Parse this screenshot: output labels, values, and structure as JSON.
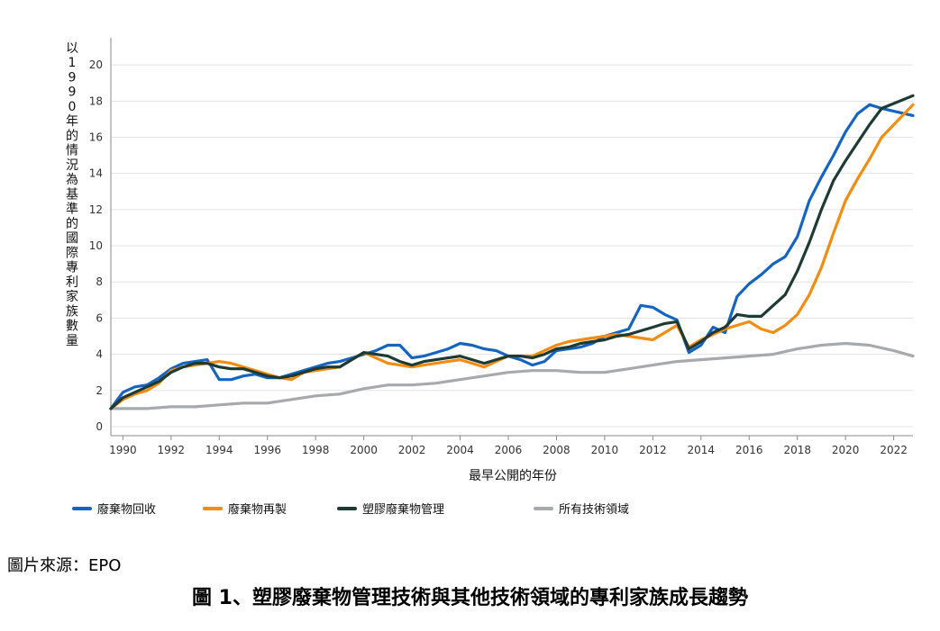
{
  "source": "圖片來源：EPO",
  "caption": "圖 1、塑膠廢棄物管理技術與其他技術領域的專利家族成長趨勢",
  "chart_data": {
    "type": "line",
    "title": "",
    "xlabel": "最早公開的年份",
    "ylabel": "以1990年的情況為基準的國際專利家族數量",
    "xlim": [
      1989.5,
      2022.8
    ],
    "ylim": [
      -0.5,
      21.5
    ],
    "xticks": [
      1990,
      1992,
      1994,
      1996,
      1998,
      2000,
      2002,
      2004,
      2006,
      2008,
      2010,
      2012,
      2014,
      2016,
      2018,
      2020,
      2022
    ],
    "yticks": [
      0,
      2,
      4,
      6,
      8,
      10,
      12,
      14,
      16,
      18,
      20
    ],
    "grid": "horizontal",
    "legend_position": "bottom",
    "series": [
      {
        "name": "廢棄物回收",
        "color": "#1565c0",
        "points": [
          [
            1989.5,
            1.0
          ],
          [
            1990,
            1.9
          ],
          [
            1990.5,
            2.2
          ],
          [
            1991,
            2.3
          ],
          [
            1991.5,
            2.7
          ],
          [
            1992,
            3.2
          ],
          [
            1992.5,
            3.5
          ],
          [
            1993,
            3.6
          ],
          [
            1993.5,
            3.7
          ],
          [
            1994,
            2.6
          ],
          [
            1994.5,
            2.6
          ],
          [
            1995,
            2.8
          ],
          [
            1995.5,
            2.9
          ],
          [
            1996,
            2.7
          ],
          [
            1996.5,
            2.7
          ],
          [
            1997,
            2.9
          ],
          [
            1997.5,
            3.1
          ],
          [
            1998,
            3.3
          ],
          [
            1998.5,
            3.5
          ],
          [
            1999,
            3.6
          ],
          [
            1999.5,
            3.8
          ],
          [
            2000,
            4.0
          ],
          [
            2000.5,
            4.2
          ],
          [
            2001,
            4.5
          ],
          [
            2001.5,
            4.5
          ],
          [
            2002,
            3.8
          ],
          [
            2002.5,
            3.9
          ],
          [
            2003,
            4.1
          ],
          [
            2003.5,
            4.3
          ],
          [
            2004,
            4.6
          ],
          [
            2004.5,
            4.5
          ],
          [
            2005,
            4.3
          ],
          [
            2005.5,
            4.2
          ],
          [
            2006,
            3.9
          ],
          [
            2006.5,
            3.7
          ],
          [
            2007,
            3.4
          ],
          [
            2007.5,
            3.6
          ],
          [
            2008,
            4.2
          ],
          [
            2008.5,
            4.3
          ],
          [
            2009,
            4.4
          ],
          [
            2009.5,
            4.6
          ],
          [
            2010,
            5.0
          ],
          [
            2010.5,
            5.2
          ],
          [
            2011,
            5.4
          ],
          [
            2011.5,
            6.7
          ],
          [
            2012,
            6.6
          ],
          [
            2012.5,
            6.2
          ],
          [
            2013,
            5.9
          ],
          [
            2013.5,
            4.1
          ],
          [
            2014,
            4.5
          ],
          [
            2014.5,
            5.5
          ],
          [
            2015,
            5.2
          ],
          [
            2015.5,
            7.2
          ],
          [
            2016,
            7.9
          ],
          [
            2016.5,
            8.4
          ],
          [
            2017,
            9.0
          ],
          [
            2017.5,
            9.4
          ],
          [
            2018,
            10.5
          ],
          [
            2018.5,
            12.5
          ],
          [
            2019,
            13.8
          ],
          [
            2019.5,
            15.0
          ],
          [
            2020,
            16.3
          ],
          [
            2020.5,
            17.3
          ],
          [
            2021,
            17.8
          ],
          [
            2021.5,
            17.6
          ],
          [
            2022.8,
            17.2
          ]
        ]
      },
      {
        "name": "廢棄物再製",
        "color": "#f28c12",
        "points": [
          [
            1989.5,
            1.0
          ],
          [
            1990,
            1.5
          ],
          [
            1990.5,
            1.8
          ],
          [
            1991,
            2.0
          ],
          [
            1991.5,
            2.4
          ],
          [
            1992,
            3.1
          ],
          [
            1992.5,
            3.3
          ],
          [
            1993,
            3.4
          ],
          [
            1993.5,
            3.5
          ],
          [
            1994,
            3.6
          ],
          [
            1994.5,
            3.5
          ],
          [
            1995,
            3.3
          ],
          [
            1995.5,
            3.1
          ],
          [
            1996,
            2.9
          ],
          [
            1996.5,
            2.7
          ],
          [
            1997,
            2.6
          ],
          [
            1997.5,
            3.0
          ],
          [
            1998,
            3.1
          ],
          [
            1998.5,
            3.2
          ],
          [
            1999,
            3.3
          ],
          [
            1999.5,
            3.7
          ],
          [
            2000,
            4.1
          ],
          [
            2000.5,
            3.8
          ],
          [
            2001,
            3.5
          ],
          [
            2001.5,
            3.4
          ],
          [
            2002,
            3.3
          ],
          [
            2002.5,
            3.4
          ],
          [
            2003,
            3.5
          ],
          [
            2003.5,
            3.6
          ],
          [
            2004,
            3.7
          ],
          [
            2004.5,
            3.5
          ],
          [
            2005,
            3.3
          ],
          [
            2005.5,
            3.6
          ],
          [
            2006,
            3.9
          ],
          [
            2006.5,
            3.9
          ],
          [
            2007,
            3.9
          ],
          [
            2007.5,
            4.2
          ],
          [
            2008,
            4.5
          ],
          [
            2008.5,
            4.7
          ],
          [
            2009,
            4.8
          ],
          [
            2009.5,
            4.9
          ],
          [
            2010,
            5.0
          ],
          [
            2010.5,
            5.1
          ],
          [
            2011,
            5.0
          ],
          [
            2011.5,
            4.9
          ],
          [
            2012,
            4.8
          ],
          [
            2012.5,
            5.2
          ],
          [
            2013,
            5.6
          ],
          [
            2013.5,
            4.4
          ],
          [
            2014,
            4.8
          ],
          [
            2014.5,
            5.1
          ],
          [
            2015,
            5.4
          ],
          [
            2015.5,
            5.6
          ],
          [
            2016,
            5.8
          ],
          [
            2016.5,
            5.4
          ],
          [
            2017,
            5.2
          ],
          [
            2017.5,
            5.6
          ],
          [
            2018,
            6.2
          ],
          [
            2018.5,
            7.3
          ],
          [
            2019,
            8.8
          ],
          [
            2019.5,
            10.7
          ],
          [
            2020,
            12.5
          ],
          [
            2020.5,
            13.7
          ],
          [
            2021,
            14.8
          ],
          [
            2021.5,
            16.0
          ],
          [
            2022.8,
            17.8
          ]
        ]
      },
      {
        "name": "塑膠廢棄物管理",
        "color": "#1d3a34",
        "points": [
          [
            1989.5,
            1.0
          ],
          [
            1990,
            1.6
          ],
          [
            1990.5,
            1.9
          ],
          [
            1991,
            2.2
          ],
          [
            1991.5,
            2.5
          ],
          [
            1992,
            3.0
          ],
          [
            1992.5,
            3.3
          ],
          [
            1993,
            3.5
          ],
          [
            1993.5,
            3.5
          ],
          [
            1994,
            3.3
          ],
          [
            1994.5,
            3.2
          ],
          [
            1995,
            3.2
          ],
          [
            1995.5,
            3.0
          ],
          [
            1996,
            2.8
          ],
          [
            1996.5,
            2.7
          ],
          [
            1997,
            2.8
          ],
          [
            1997.5,
            3.0
          ],
          [
            1998,
            3.2
          ],
          [
            1998.5,
            3.3
          ],
          [
            1999,
            3.3
          ],
          [
            1999.5,
            3.7
          ],
          [
            2000,
            4.1
          ],
          [
            2000.5,
            4.0
          ],
          [
            2001,
            3.9
          ],
          [
            2001.5,
            3.6
          ],
          [
            2002,
            3.4
          ],
          [
            2002.5,
            3.6
          ],
          [
            2003,
            3.7
          ],
          [
            2003.5,
            3.8
          ],
          [
            2004,
            3.9
          ],
          [
            2004.5,
            3.7
          ],
          [
            2005,
            3.5
          ],
          [
            2005.5,
            3.7
          ],
          [
            2006,
            3.9
          ],
          [
            2006.5,
            3.9
          ],
          [
            2007,
            3.8
          ],
          [
            2007.5,
            4.0
          ],
          [
            2008,
            4.3
          ],
          [
            2008.5,
            4.4
          ],
          [
            2009,
            4.6
          ],
          [
            2009.5,
            4.7
          ],
          [
            2010,
            4.8
          ],
          [
            2010.5,
            5.0
          ],
          [
            2011,
            5.1
          ],
          [
            2011.5,
            5.3
          ],
          [
            2012,
            5.5
          ],
          [
            2012.5,
            5.7
          ],
          [
            2013,
            5.8
          ],
          [
            2013.5,
            4.3
          ],
          [
            2014,
            4.7
          ],
          [
            2014.5,
            5.2
          ],
          [
            2015,
            5.5
          ],
          [
            2015.5,
            6.2
          ],
          [
            2016,
            6.1
          ],
          [
            2016.5,
            6.1
          ],
          [
            2017,
            6.7
          ],
          [
            2017.5,
            7.3
          ],
          [
            2018,
            8.6
          ],
          [
            2018.5,
            10.2
          ],
          [
            2019,
            12.0
          ],
          [
            2019.5,
            13.6
          ],
          [
            2020,
            14.7
          ],
          [
            2020.5,
            15.7
          ],
          [
            2021,
            16.7
          ],
          [
            2021.5,
            17.6
          ],
          [
            2022.8,
            18.3
          ]
        ]
      },
      {
        "name": "所有技術領域",
        "color": "#a7a9ac",
        "points": [
          [
            1989.5,
            1.0
          ],
          [
            1990,
            1.0
          ],
          [
            1991,
            1.0
          ],
          [
            1992,
            1.1
          ],
          [
            1993,
            1.1
          ],
          [
            1994,
            1.2
          ],
          [
            1995,
            1.3
          ],
          [
            1996,
            1.3
          ],
          [
            1997,
            1.5
          ],
          [
            1998,
            1.7
          ],
          [
            1999,
            1.8
          ],
          [
            2000,
            2.1
          ],
          [
            2000.5,
            2.2
          ],
          [
            2001,
            2.3
          ],
          [
            2002,
            2.3
          ],
          [
            2003,
            2.4
          ],
          [
            2004,
            2.6
          ],
          [
            2005,
            2.8
          ],
          [
            2006,
            3.0
          ],
          [
            2007,
            3.1
          ],
          [
            2008,
            3.1
          ],
          [
            2009,
            3.0
          ],
          [
            2010,
            3.0
          ],
          [
            2011,
            3.2
          ],
          [
            2012,
            3.4
          ],
          [
            2013,
            3.6
          ],
          [
            2014,
            3.7
          ],
          [
            2015,
            3.8
          ],
          [
            2016,
            3.9
          ],
          [
            2017,
            4.0
          ],
          [
            2018,
            4.3
          ],
          [
            2019,
            4.5
          ],
          [
            2020,
            4.6
          ],
          [
            2021,
            4.5
          ],
          [
            2022,
            4.2
          ],
          [
            2022.8,
            3.9
          ]
        ]
      }
    ]
  }
}
